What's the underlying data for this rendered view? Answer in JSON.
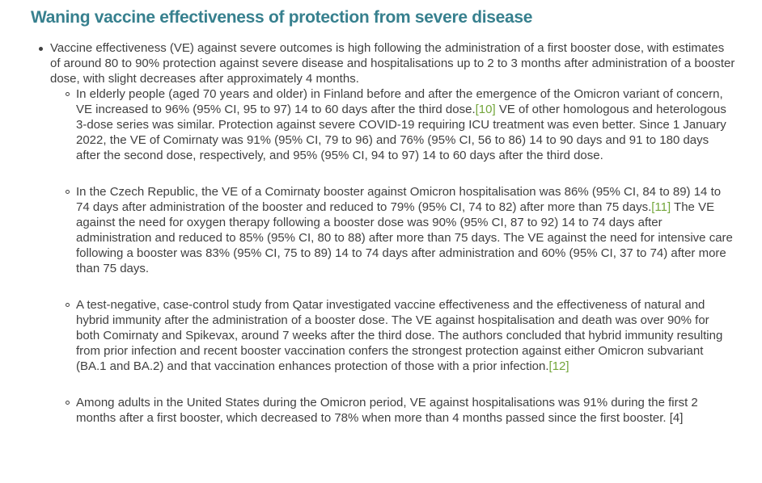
{
  "title": "Waning vaccine effectiveness of protection from severe disease",
  "colors": {
    "title_teal": "#37808E",
    "body_text": "#404040",
    "reference_link_green": "#74A63C"
  },
  "intro_bullet": {
    "text": "Vaccine effectiveness (VE) against severe outcomes is high following the administration of a first booster dose, with estimates of around 80 to 90% protection against severe disease and hospitalisations up to 2 to 3 months after administration of a booster dose, with slight decreases after approximately 4 months."
  },
  "sub_bullets": [
    {
      "segments": [
        {
          "text": "In elderly people (aged 70 years and older) in Finland before and after the emergence of the Omicron variant of concern, VE increased to 96% (95% CI, 95 to 97) 14 to 60 days after the third dose."
        },
        {
          "text": "[10]"
        },
        {
          "text": " VE of other homologous and heterologous 3-dose series was similar. Protection against severe COVID-19 requiring ICU treatment was even better. Since 1 January 2022, the VE of Comirnaty was 91% (95% CI, 79 to 96) and 76% (95% CI, 56 to 86) 14 to 90 days and 91 to 180 days after the second dose, respectively, and 95% (95% CI, 94 to 97) 14 to 60 days after the third dose."
        }
      ]
    },
    {
      "segments": [
        {
          "text": "In the Czech Republic, the VE of a Comirnaty booster against Omicron hospitalisation was 86% (95% CI, 84 to 89) 14 to 74 days after administration of the booster and reduced to 79% (95% CI, 74 to 82) after more than 75 days."
        },
        {
          "text": "[11]"
        },
        {
          "text": " The VE against the need for oxygen therapy following a booster dose was 90% (95% CI, 87 to 92) 14 to 74 days after administration and reduced to 85% (95% CI, 80 to 88) after more than 75 days. The VE against the need for intensive care following a booster was 83% (95% CI, 75 to 89) 14 to 74 days after administration and 60% (95% CI, 37 to 74) after more than 75 days."
        }
      ]
    },
    {
      "segments": [
        {
          "text": "A test-negative, case-control study from Qatar investigated vaccine effectiveness and the effectiveness of natural and hybrid immunity after the administration of a booster dose. The VE against hospitalisation and death was over 90% for both Comirnaty and Spikevax, around 7 weeks after the third dose. The authors concluded that hybrid immunity resulting from prior infection and recent booster vaccination confers the strongest protection against either Omicron subvariant (BA.1 and BA.2) and that vaccination enhances protection of those with a prior infection."
        },
        {
          "text": "[12]"
        }
      ]
    },
    {
      "segments": [
        {
          "text": "Among adults in the United States during the Omicron period, VE against hospitalisations was 91% during the first 2 months after a first booster, which decreased to 78% when more than 4 months passed since the first booster. [4]"
        }
      ]
    }
  ]
}
